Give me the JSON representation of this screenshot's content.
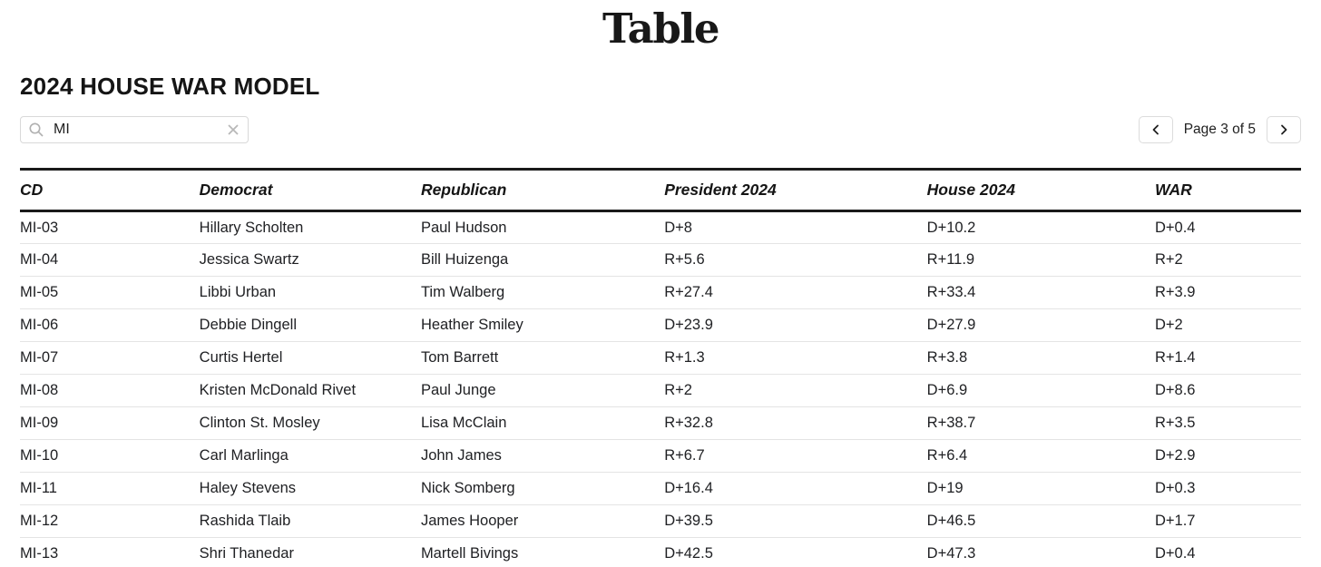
{
  "masthead": {
    "logo_text": "Table"
  },
  "page": {
    "title": "2024 HOUSE WAR MODEL"
  },
  "search": {
    "value": "MI",
    "placeholder": ""
  },
  "pagination": {
    "label": "Page 3 of 5",
    "current_page": 3,
    "total_pages": 5
  },
  "icons": {
    "search": "magnifier",
    "clear": "x-cross",
    "prev": "chevron-left",
    "next": "chevron-right"
  },
  "colors": {
    "text": "#202124",
    "heading": "#151515",
    "header_border": "#1a1a1a",
    "row_border": "#e4e4e4",
    "input_border": "#d9d9d9",
    "icon_gray": "#b8b8b8"
  },
  "table": {
    "columns": [
      "CD",
      "Democrat",
      "Republican",
      "President 2024",
      "House 2024",
      "WAR"
    ],
    "rows": [
      [
        "MI-03",
        "Hillary Scholten",
        "Paul Hudson",
        "D+8",
        "D+10.2",
        "D+0.4"
      ],
      [
        "MI-04",
        "Jessica Swartz",
        "Bill Huizenga",
        "R+5.6",
        "R+11.9",
        "R+2"
      ],
      [
        "MI-05",
        "Libbi Urban",
        "Tim Walberg",
        "R+27.4",
        "R+33.4",
        "R+3.9"
      ],
      [
        "MI-06",
        "Debbie Dingell",
        "Heather Smiley",
        "D+23.9",
        "D+27.9",
        "D+2"
      ],
      [
        "MI-07",
        "Curtis Hertel",
        "Tom Barrett",
        "R+1.3",
        "R+3.8",
        "R+1.4"
      ],
      [
        "MI-08",
        "Kristen McDonald Rivet",
        "Paul Junge",
        "R+2",
        "D+6.9",
        "D+8.6"
      ],
      [
        "MI-09",
        "Clinton St. Mosley",
        "Lisa McClain",
        "R+32.8",
        "R+38.7",
        "R+3.5"
      ],
      [
        "MI-10",
        "Carl Marlinga",
        "John James",
        "R+6.7",
        "R+6.4",
        "D+2.9"
      ],
      [
        "MI-11",
        "Haley Stevens",
        "Nick Somberg",
        "D+16.4",
        "D+19",
        "D+0.3"
      ],
      [
        "MI-12",
        "Rashida Tlaib",
        "James Hooper",
        "D+39.5",
        "D+46.5",
        "D+1.7"
      ],
      [
        "MI-13",
        "Shri Thanedar",
        "Martell Bivings",
        "D+42.5",
        "D+47.3",
        "D+0.4"
      ]
    ]
  }
}
